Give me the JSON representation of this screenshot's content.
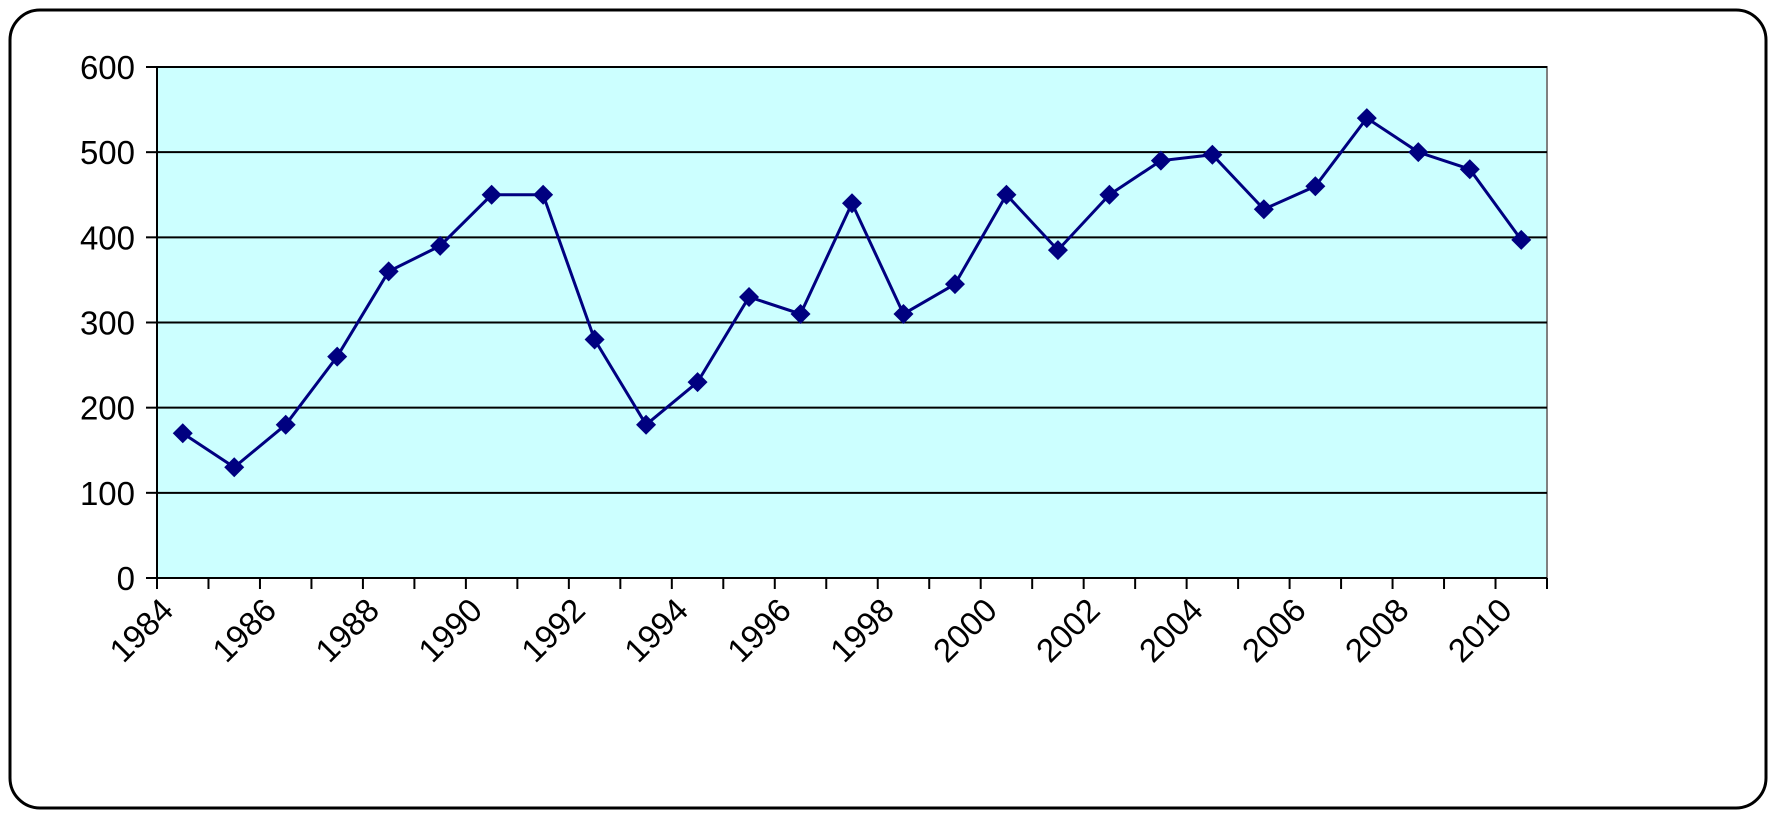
{
  "chart_data": {
    "type": "line",
    "categories": [
      "1984",
      null,
      "1986",
      null,
      "1988",
      null,
      "1990",
      null,
      "1992",
      null,
      "1994",
      null,
      "1996",
      null,
      "1998",
      null,
      "2000",
      null,
      "2002",
      null,
      "2004",
      null,
      "2006",
      null,
      "2008",
      null,
      "2010"
    ],
    "values": [
      170,
      130,
      180,
      260,
      360,
      390,
      450,
      450,
      280,
      180,
      230,
      330,
      310,
      440,
      310,
      345,
      450,
      385,
      450,
      490,
      497,
      433,
      460,
      540,
      500,
      480,
      397
    ],
    "color": "#000080",
    "background": "#ccffff",
    "ylim": [
      0,
      600
    ],
    "yticks": [
      0,
      100,
      200,
      300,
      400,
      500,
      600
    ],
    "grid": true
  }
}
